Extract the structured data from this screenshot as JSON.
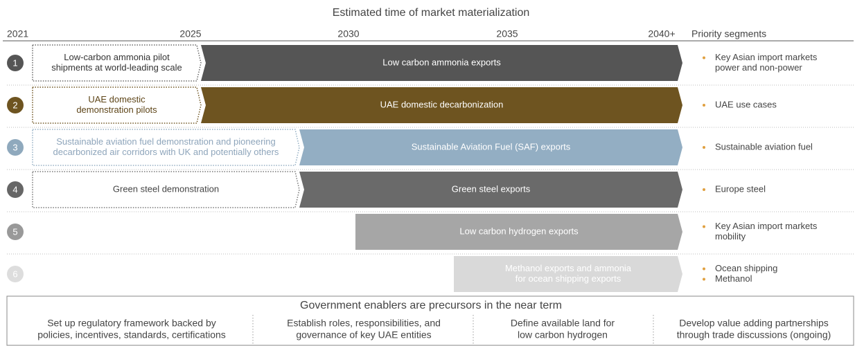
{
  "title": "Estimated time of market materialization",
  "timeline": {
    "years": [
      "2021",
      "2025",
      "2030",
      "2035",
      "2040+"
    ],
    "priority_header": "Priority segments"
  },
  "rows": [
    {
      "number": "1",
      "pilot": [
        "Low-carbon ammonia pilot",
        "shipments at world-leading scale"
      ],
      "export": [
        "Low carbon ammonia exports"
      ],
      "priorities": [
        [
          "Key Asian import markets",
          "power and non-power"
        ]
      ]
    },
    {
      "number": "2",
      "pilot": [
        "UAE domestic",
        "demonstration pilots"
      ],
      "export": [
        "UAE domestic decarbonization"
      ],
      "priorities": [
        [
          "UAE use cases"
        ]
      ]
    },
    {
      "number": "3",
      "pilot": [
        "Sustainable aviation fuel demonstration and pioneering",
        "decarbonized air corridors with UK and potentially others"
      ],
      "export": [
        "Sustainable Aviation Fuel (SAF) exports"
      ],
      "priorities": [
        [
          "Sustainable aviation fuel"
        ]
      ]
    },
    {
      "number": "4",
      "pilot": [
        "Green steel demonstration"
      ],
      "export": [
        "Green steel exports"
      ],
      "priorities": [
        [
          "Europe steel"
        ]
      ]
    },
    {
      "number": "5",
      "pilot": [],
      "export": [
        "Low carbon hydrogen exports"
      ],
      "priorities": [
        [
          "Key Asian import markets",
          "mobility"
        ]
      ]
    },
    {
      "number": "6",
      "pilot": [],
      "export": [
        "Methanol exports and ammonia",
        "for ocean shipping exports"
      ],
      "priorities": [
        [
          "Ocean shipping"
        ],
        [
          "Methanol"
        ]
      ]
    }
  ],
  "enablers": {
    "title": "Government enablers are precursors in the near term",
    "items": [
      [
        "Set up regulatory  framework backed by",
        "policies, incentives,  standards, certifications"
      ],
      [
        "Establish roles, responsibilities, and",
        "governance of key UAE entities"
      ],
      [
        "Define available land for",
        "low carbon hydrogen"
      ],
      [
        "Develop value adding partnerships",
        "through trade discussions (ongoing)"
      ]
    ]
  }
}
